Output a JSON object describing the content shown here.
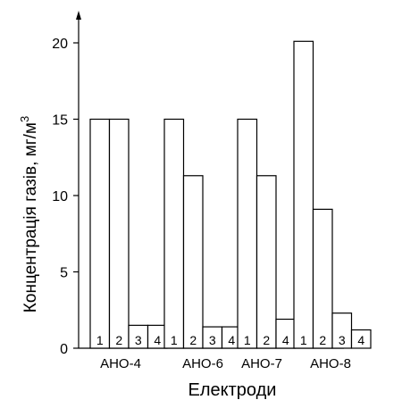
{
  "chart_data": {
    "type": "bar",
    "xlabel": "Електроди",
    "ylabel": "Концентрація газів, мг/м",
    "ylabel_sup": "3",
    "ylim": [
      0,
      20
    ],
    "yticks": [
      0,
      5,
      10,
      15,
      20
    ],
    "groups": [
      {
        "name": "АНО-4",
        "bars": [
          {
            "label": "1",
            "value": 15.0
          },
          {
            "label": "2",
            "value": 15.0
          },
          {
            "label": "3",
            "value": 1.5
          },
          {
            "label": "4",
            "value": 1.5
          }
        ]
      },
      {
        "name": "АНО-6",
        "bars": [
          {
            "label": "1",
            "value": 15.0
          },
          {
            "label": "2",
            "value": 11.3
          },
          {
            "label": "3",
            "value": 1.4
          },
          {
            "label": "4",
            "value": 1.4
          }
        ]
      },
      {
        "name": "АНО-7",
        "bars": [
          {
            "label": "1",
            "value": 15.0
          },
          {
            "label": "2",
            "value": 11.3
          },
          {
            "label": "4",
            "value": 1.9
          }
        ]
      },
      {
        "name": "АНО-8",
        "bars": [
          {
            "label": "1",
            "value": 20.1
          },
          {
            "label": "2",
            "value": 9.1
          },
          {
            "label": "3",
            "value": 2.3
          },
          {
            "label": "4",
            "value": 1.2
          }
        ]
      }
    ],
    "grid": false,
    "legend": "none"
  }
}
